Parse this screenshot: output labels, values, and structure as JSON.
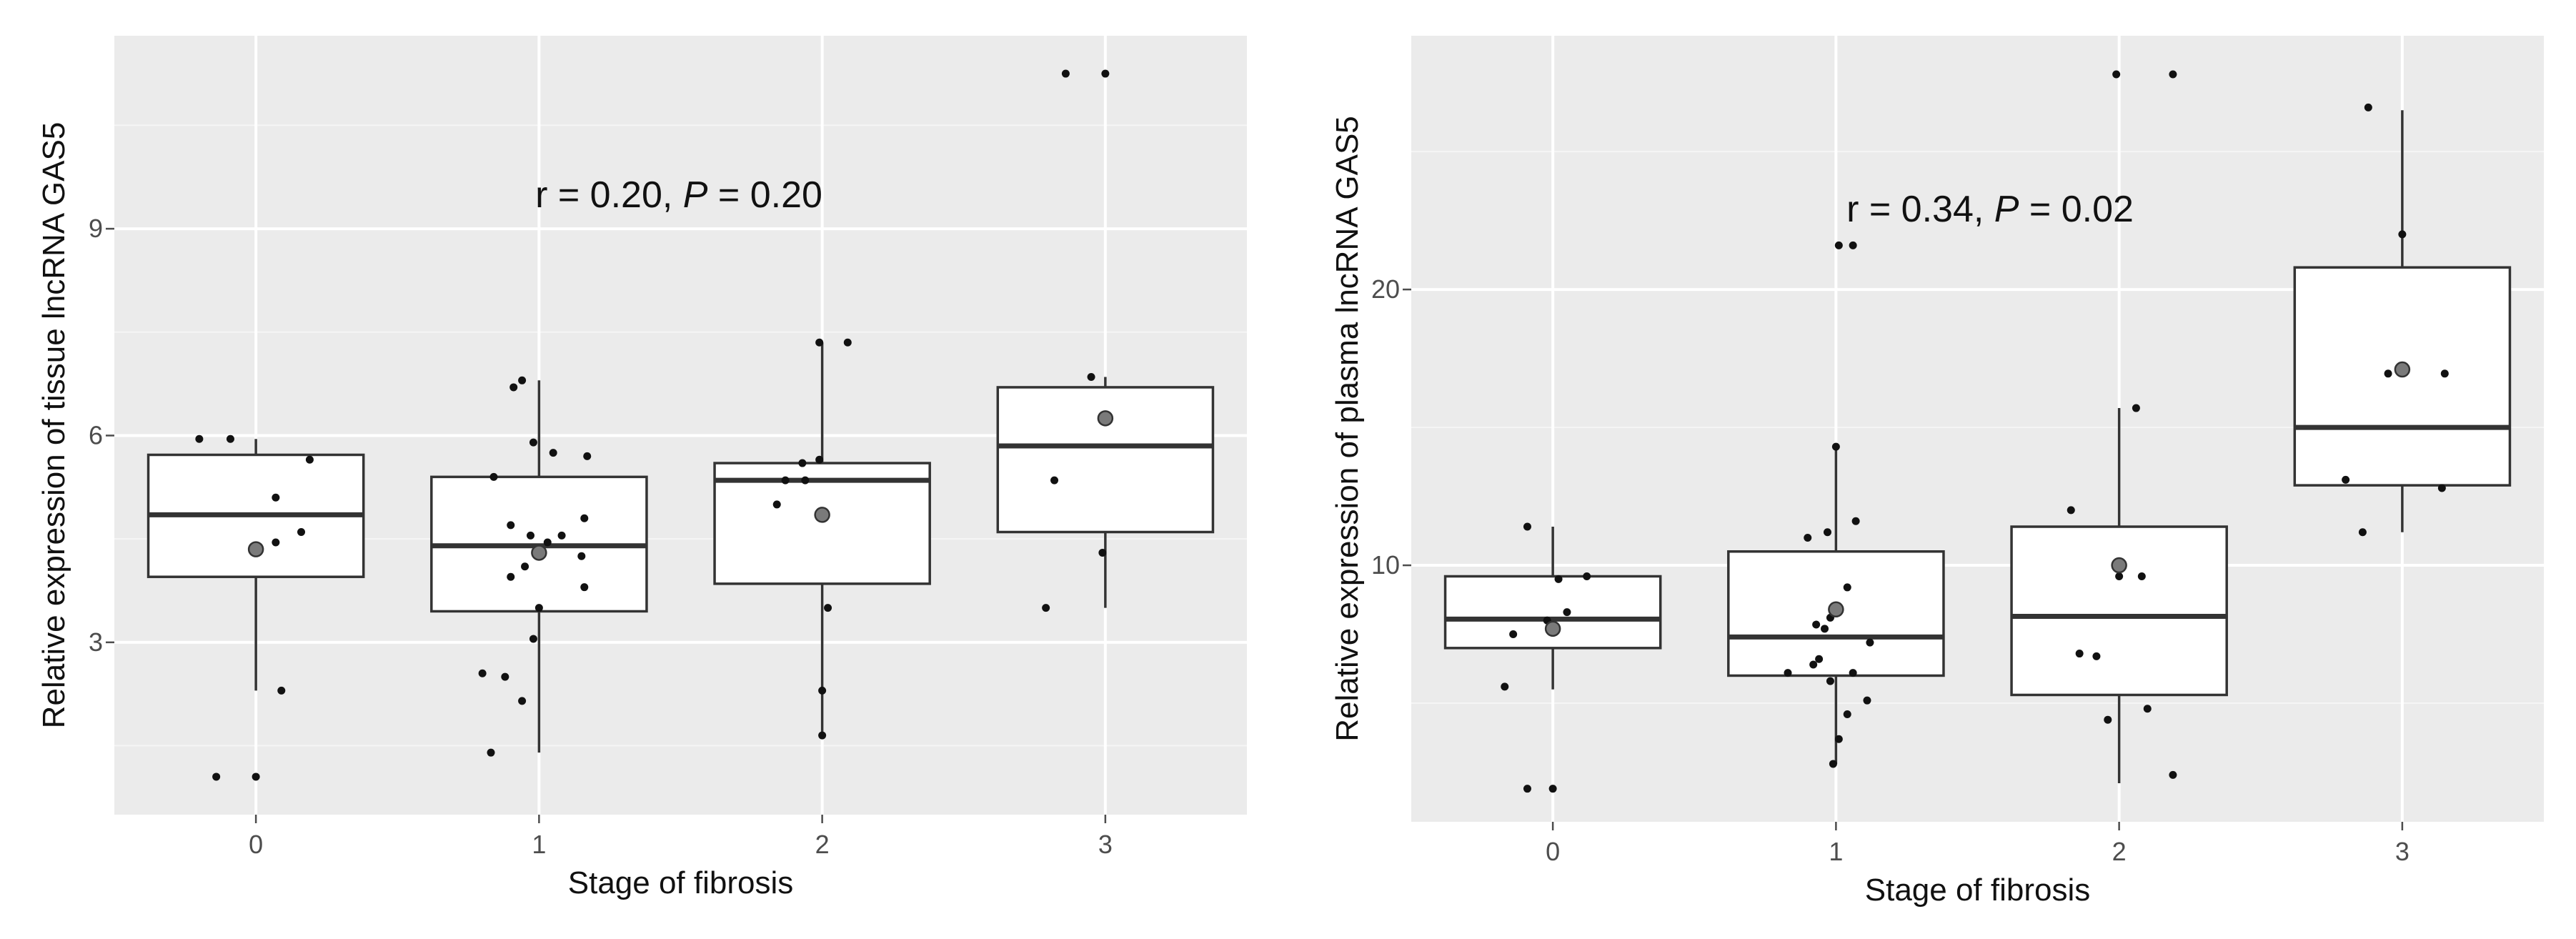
{
  "chart_data": [
    {
      "type": "box",
      "xlabel": "Stage of fibrosis",
      "ylabel": "Relative expression of tissue lncRNA GAS5",
      "annotation": {
        "prefix": "r = 0.20, ",
        "p_symbol": "P",
        "suffix": " = 0.20"
      },
      "categories": [
        "0",
        "1",
        "2",
        "3"
      ],
      "yticks": [
        3,
        6,
        9
      ],
      "ylim": [
        0.5,
        11.8
      ],
      "grid": true,
      "boxes": [
        {
          "category": "0",
          "q1": 3.95,
          "median": 4.85,
          "q3": 5.72,
          "whisker_low": 2.3,
          "whisker_high": 5.95,
          "mean": 4.35
        },
        {
          "category": "1",
          "q1": 3.45,
          "median": 4.4,
          "q3": 5.4,
          "whisker_low": 1.4,
          "whisker_high": 6.8,
          "mean": 4.3
        },
        {
          "category": "2",
          "q1": 3.85,
          "median": 5.35,
          "q3": 5.6,
          "whisker_low": 1.7,
          "whisker_high": 7.35,
          "mean": 4.85
        },
        {
          "category": "3",
          "q1": 4.6,
          "median": 5.85,
          "q3": 6.7,
          "whisker_low": 3.5,
          "whisker_high": 6.85,
          "mean": 6.25
        }
      ],
      "points": [
        {
          "x": -0.2,
          "y": 5.95
        },
        {
          "x": -0.09,
          "y": 5.95
        },
        {
          "x": 0.19,
          "y": 5.65
        },
        {
          "x": 0.07,
          "y": 5.1
        },
        {
          "x": 0.16,
          "y": 4.6
        },
        {
          "x": 0.07,
          "y": 4.45
        },
        {
          "x": 0.09,
          "y": 2.3
        },
        {
          "x": -0.14,
          "y": 1.05
        },
        {
          "x": 0.0,
          "y": 1.05
        },
        {
          "x": 0.94,
          "y": 6.8
        },
        {
          "x": 0.91,
          "y": 6.7
        },
        {
          "x": 0.98,
          "y": 5.9
        },
        {
          "x": 1.05,
          "y": 5.75
        },
        {
          "x": 1.17,
          "y": 5.7
        },
        {
          "x": 0.84,
          "y": 5.4
        },
        {
          "x": 0.9,
          "y": 4.7
        },
        {
          "x": 1.16,
          "y": 4.8
        },
        {
          "x": 0.97,
          "y": 4.55
        },
        {
          "x": 1.08,
          "y": 4.55
        },
        {
          "x": 1.15,
          "y": 4.25
        },
        {
          "x": 1.03,
          "y": 4.45
        },
        {
          "x": 0.9,
          "y": 3.95
        },
        {
          "x": 0.95,
          "y": 4.1
        },
        {
          "x": 1.16,
          "y": 3.8
        },
        {
          "x": 1.0,
          "y": 3.5
        },
        {
          "x": 0.98,
          "y": 3.05
        },
        {
          "x": 0.8,
          "y": 2.55
        },
        {
          "x": 0.88,
          "y": 2.5
        },
        {
          "x": 0.94,
          "y": 2.15
        },
        {
          "x": 0.83,
          "y": 1.4
        },
        {
          "x": 1.99,
          "y": 7.35
        },
        {
          "x": 2.09,
          "y": 7.35
        },
        {
          "x": 1.93,
          "y": 5.6
        },
        {
          "x": 1.99,
          "y": 5.65
        },
        {
          "x": 1.87,
          "y": 5.35
        },
        {
          "x": 1.94,
          "y": 5.35
        },
        {
          "x": 1.84,
          "y": 5.0
        },
        {
          "x": 2.02,
          "y": 3.5
        },
        {
          "x": 2.0,
          "y": 2.3
        },
        {
          "x": 2.0,
          "y": 1.65
        },
        {
          "x": 2.86,
          "y": 11.25
        },
        {
          "x": 3.0,
          "y": 11.25
        },
        {
          "x": 2.95,
          "y": 6.85
        },
        {
          "x": 2.82,
          "y": 5.35
        },
        {
          "x": 2.99,
          "y": 4.3
        },
        {
          "x": 2.79,
          "y": 3.5
        }
      ]
    },
    {
      "type": "box",
      "xlabel": "Stage of fibrosis",
      "ylabel": "Relative expression of plasma lncRNA GAS5",
      "annotation": {
        "prefix": "r = 0.34, ",
        "p_symbol": "P",
        "suffix": " = 0.02"
      },
      "categories": [
        "0",
        "1",
        "2",
        "3"
      ],
      "yticks": [
        10,
        20
      ],
      "ylim": [
        0.7,
        29.2
      ],
      "grid": true,
      "boxes": [
        {
          "category": "0",
          "q1": 7.0,
          "median": 8.05,
          "q3": 9.6,
          "whisker_low": 5.5,
          "whisker_high": 11.4,
          "mean": 7.7
        },
        {
          "category": "1",
          "q1": 6.0,
          "median": 7.4,
          "q3": 10.5,
          "whisker_low": 2.8,
          "whisker_high": 14.3,
          "mean": 8.4
        },
        {
          "category": "2",
          "q1": 5.3,
          "median": 8.15,
          "q3": 11.4,
          "whisker_low": 2.1,
          "whisker_high": 15.7,
          "mean": 10.0
        },
        {
          "category": "3",
          "q1": 12.9,
          "median": 15.0,
          "q3": 20.8,
          "whisker_low": 11.2,
          "whisker_high": 26.5,
          "mean": 17.1
        }
      ],
      "points": [
        {
          "x": -0.09,
          "y": 11.4
        },
        {
          "x": 0.12,
          "y": 9.6
        },
        {
          "x": 0.02,
          "y": 9.5
        },
        {
          "x": 0.05,
          "y": 8.3
        },
        {
          "x": -0.02,
          "y": 8.0
        },
        {
          "x": -0.14,
          "y": 7.5
        },
        {
          "x": -0.17,
          "y": 5.6
        },
        {
          "x": -0.09,
          "y": 1.9
        },
        {
          "x": 0.0,
          "y": 1.9
        },
        {
          "x": 1.01,
          "y": 21.6
        },
        {
          "x": 1.06,
          "y": 21.6
        },
        {
          "x": 1.0,
          "y": 14.3
        },
        {
          "x": 1.07,
          "y": 11.6
        },
        {
          "x": 0.97,
          "y": 11.2
        },
        {
          "x": 0.9,
          "y": 11.0
        },
        {
          "x": 1.04,
          "y": 9.2
        },
        {
          "x": 0.98,
          "y": 8.1
        },
        {
          "x": 0.93,
          "y": 7.85
        },
        {
          "x": 0.96,
          "y": 7.7
        },
        {
          "x": 1.12,
          "y": 7.2
        },
        {
          "x": 0.94,
          "y": 6.6
        },
        {
          "x": 0.92,
          "y": 6.4
        },
        {
          "x": 0.83,
          "y": 6.1
        },
        {
          "x": 0.98,
          "y": 5.8
        },
        {
          "x": 1.06,
          "y": 6.1
        },
        {
          "x": 1.11,
          "y": 5.1
        },
        {
          "x": 1.04,
          "y": 4.6
        },
        {
          "x": 1.01,
          "y": 3.7
        },
        {
          "x": 0.99,
          "y": 2.8
        },
        {
          "x": 1.99,
          "y": 27.8
        },
        {
          "x": 2.19,
          "y": 27.8
        },
        {
          "x": 2.06,
          "y": 15.7
        },
        {
          "x": 1.83,
          "y": 12.0
        },
        {
          "x": 2.0,
          "y": 9.6
        },
        {
          "x": 2.08,
          "y": 9.6
        },
        {
          "x": 1.86,
          "y": 6.8
        },
        {
          "x": 1.92,
          "y": 6.7
        },
        {
          "x": 1.96,
          "y": 4.4
        },
        {
          "x": 2.1,
          "y": 4.8
        },
        {
          "x": 2.19,
          "y": 2.4
        },
        {
          "x": 2.88,
          "y": 26.6
        },
        {
          "x": 3.0,
          "y": 22.0
        },
        {
          "x": 2.95,
          "y": 16.95
        },
        {
          "x": 3.15,
          "y": 16.95
        },
        {
          "x": 2.8,
          "y": 13.1
        },
        {
          "x": 3.14,
          "y": 12.8
        },
        {
          "x": 2.86,
          "y": 11.2
        }
      ]
    }
  ]
}
